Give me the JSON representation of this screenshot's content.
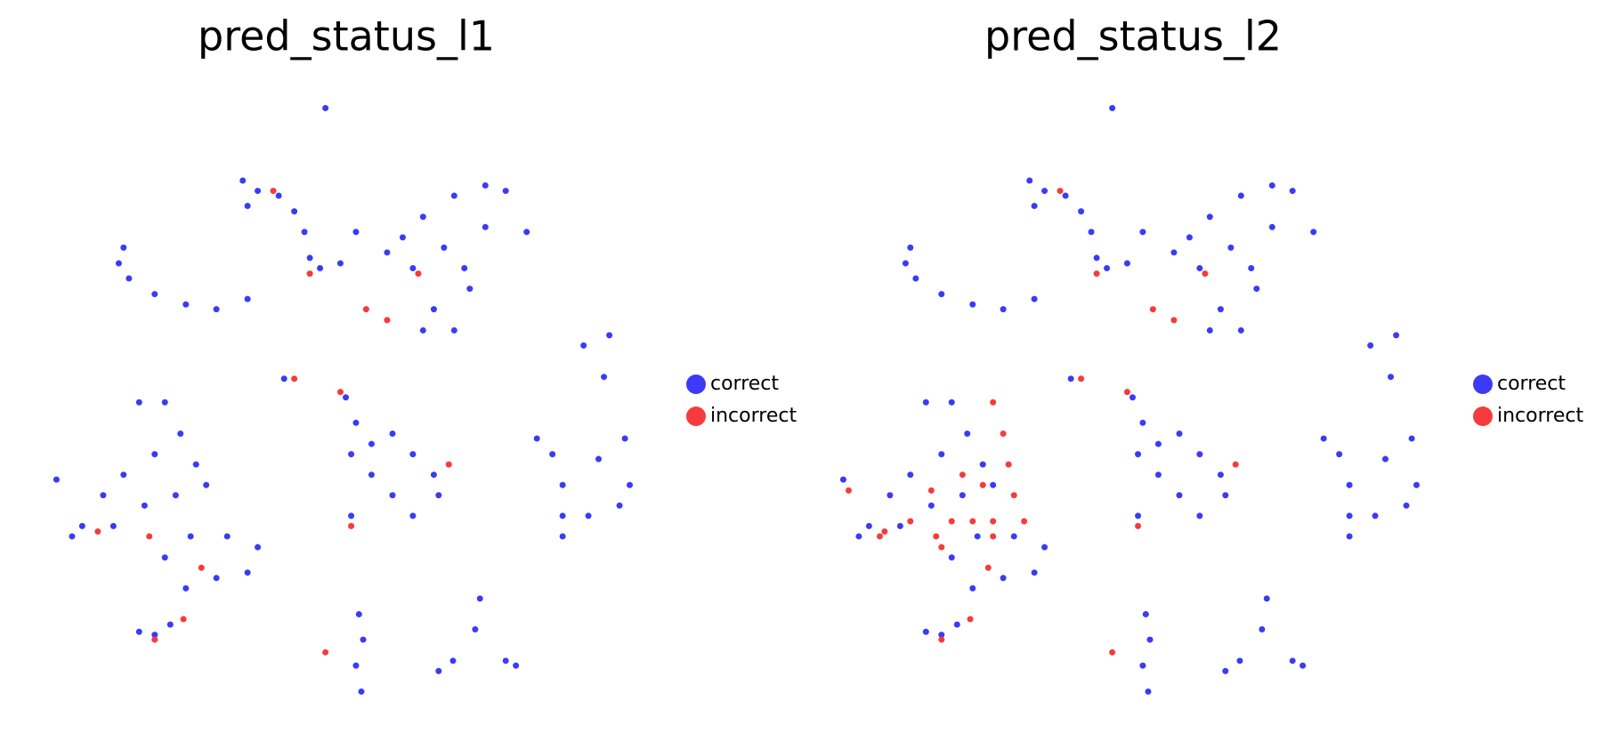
{
  "chart_data": [
    {
      "type": "scatter",
      "title": "pred_status_l1",
      "xlim": [
        0,
        100
      ],
      "ylim": [
        0,
        100
      ],
      "legend": "right",
      "series": [
        {
          "name": "correct",
          "color": "#3b3bf5",
          "x": [
            46.6,
            32.8,
            35.3,
            38.8,
            41.4,
            43.1,
            44.0,
            45.7,
            49.1,
            51.7,
            33.6,
            59.5,
            62.9,
            68.1,
            73.3,
            76.7,
            66.4,
            69.8,
            61.2,
            64.7,
            68.1,
            62.9,
            73.3,
            80.2,
            70.7,
            56.9,
            12.1,
            13.8,
            18.1,
            23.3,
            28.4,
            33.6,
            12.9,
            89.7,
            94.0,
            93.1,
            39.7,
            15.5,
            19.8,
            22.4,
            25.0,
            18.1,
            12.9,
            9.5,
            6.0,
            4.3,
            11.2,
            16.4,
            21.6,
            26.7,
            24.1,
            30.2,
            35.3,
            19.8,
            23.3,
            28.4,
            33.6,
            1.7,
            18.1,
            15.5,
            20.7,
            50.0,
            51.7,
            50.9,
            54.3,
            57.8,
            61.2,
            57.8,
            61.2,
            64.7,
            65.5,
            54.3,
            81.9,
            84.5,
            86.2,
            86.2,
            86.2,
            90.5,
            95.7,
            97.4,
            96.6,
            92.2,
            50.9,
            52.2,
            52.9,
            51.7,
            52.6,
            72.4,
            71.6,
            67.9,
            65.5,
            76.7,
            78.4
          ],
          "y": [
            98.3,
            86.3,
            84.6,
            83.8,
            81.2,
            77.8,
            73.5,
            71.8,
            72.6,
            77.8,
            82.1,
            76.9,
            80.3,
            83.8,
            85.5,
            84.6,
            75.2,
            71.8,
            71.8,
            65.0,
            61.5,
            61.5,
            78.6,
            77.8,
            68.4,
            74.4,
            72.6,
            70.1,
            67.5,
            65.8,
            65.0,
            66.7,
            75.2,
            59.0,
            60.7,
            53.8,
            53.5,
            49.6,
            49.6,
            44.4,
            39.3,
            41.0,
            37.6,
            34.2,
            29.1,
            27.4,
            29.1,
            32.5,
            34.2,
            35.9,
            27.4,
            27.4,
            25.6,
            23.9,
            18.8,
            20.5,
            21.4,
            36.8,
            11.1,
            11.6,
            12.8,
            50.4,
            46.2,
            41.0,
            37.6,
            34.2,
            30.8,
            44.4,
            41.0,
            37.6,
            34.2,
            42.7,
            43.6,
            41.0,
            35.9,
            30.8,
            27.4,
            30.8,
            32.5,
            35.9,
            43.6,
            40.2,
            30.8,
            14.5,
            10.3,
            6.0,
            1.7,
            17.1,
            12.0,
            6.8,
            5.1,
            6.8,
            6.0
          ]
        },
        {
          "name": "incorrect",
          "color": "#f53b3b",
          "x": [
            37.9,
            44.0,
            49.1,
            53.4,
            56.9,
            18.1,
            22.9,
            46.6,
            50.9,
            67.2,
            17.2,
            25.9,
            41.4,
            8.6,
            62.1
          ],
          "y": [
            84.6,
            70.9,
            51.3,
            65.0,
            63.2,
            10.3,
            13.7,
            8.2,
            29.1,
            39.3,
            27.4,
            22.2,
            53.5,
            28.2,
            70.9
          ]
        }
      ]
    },
    {
      "type": "scatter",
      "title": "pred_status_l2",
      "xlim": [
        0,
        100
      ],
      "ylim": [
        0,
        100
      ],
      "legend": "right",
      "series": [
        {
          "name": "correct",
          "color": "#3b3bf5",
          "x": [
            46.6,
            32.8,
            35.3,
            38.8,
            41.4,
            43.1,
            44.0,
            45.7,
            49.1,
            51.7,
            33.6,
            59.5,
            62.9,
            68.1,
            73.3,
            76.7,
            66.4,
            69.8,
            61.2,
            64.7,
            68.1,
            62.9,
            73.3,
            80.2,
            70.7,
            56.9,
            12.1,
            13.8,
            18.1,
            23.3,
            28.4,
            33.6,
            12.9,
            89.7,
            94.0,
            93.1,
            39.7,
            15.5,
            19.8,
            22.4,
            25.0,
            18.1,
            12.9,
            9.5,
            6.0,
            4.3,
            11.2,
            16.4,
            21.6,
            26.7,
            24.1,
            30.2,
            35.3,
            19.8,
            23.3,
            28.4,
            33.6,
            1.7,
            18.1,
            15.5,
            20.7,
            50.0,
            51.7,
            50.9,
            54.3,
            57.8,
            61.2,
            57.8,
            61.2,
            64.7,
            65.5,
            54.3,
            81.9,
            84.5,
            86.2,
            86.2,
            86.2,
            90.5,
            95.7,
            97.4,
            96.6,
            92.2,
            50.9,
            52.2,
            52.9,
            51.7,
            52.6,
            72.4,
            71.6,
            67.9,
            65.5,
            76.7,
            78.4
          ],
          "y": [
            98.3,
            86.3,
            84.6,
            83.8,
            81.2,
            77.8,
            73.5,
            71.8,
            72.6,
            77.8,
            82.1,
            76.9,
            80.3,
            83.8,
            85.5,
            84.6,
            75.2,
            71.8,
            71.8,
            65.0,
            61.5,
            61.5,
            78.6,
            77.8,
            68.4,
            74.4,
            72.6,
            70.1,
            67.5,
            65.8,
            65.0,
            66.7,
            75.2,
            59.0,
            60.7,
            53.8,
            53.5,
            49.6,
            49.6,
            44.4,
            39.3,
            41.0,
            37.6,
            34.2,
            29.1,
            27.4,
            29.1,
            32.5,
            34.2,
            35.9,
            27.4,
            27.4,
            25.6,
            23.9,
            18.8,
            20.5,
            21.4,
            36.8,
            11.1,
            11.6,
            12.8,
            50.4,
            46.2,
            41.0,
            37.6,
            34.2,
            30.8,
            44.4,
            41.0,
            37.6,
            34.2,
            42.7,
            43.6,
            41.0,
            35.9,
            30.8,
            27.4,
            30.8,
            32.5,
            35.9,
            43.6,
            40.2,
            30.8,
            14.5,
            10.3,
            6.0,
            1.7,
            17.1,
            12.0,
            6.8,
            5.1,
            6.8,
            6.0
          ]
        },
        {
          "name": "incorrect",
          "color": "#f53b3b",
          "x": [
            37.9,
            44.0,
            49.1,
            53.4,
            56.9,
            18.1,
            22.9,
            46.6,
            50.9,
            67.2,
            17.2,
            25.9,
            41.4,
            8.6,
            62.1,
            26.7,
            28.4,
            25.0,
            30.2,
            19.8,
            23.3,
            26.7,
            16.4,
            12.9,
            7.8,
            2.6,
            21.6,
            29.3,
            31.9,
            18.1,
            26.7
          ],
          "y": [
            84.6,
            70.9,
            51.3,
            65.0,
            63.2,
            10.3,
            13.7,
            8.2,
            29.1,
            39.3,
            27.4,
            22.2,
            53.5,
            28.2,
            70.9,
            49.6,
            44.4,
            35.9,
            34.2,
            29.9,
            29.9,
            29.9,
            35.0,
            29.9,
            27.4,
            35.0,
            37.6,
            39.3,
            29.9,
            25.6,
            27.4
          ]
        }
      ]
    }
  ]
}
